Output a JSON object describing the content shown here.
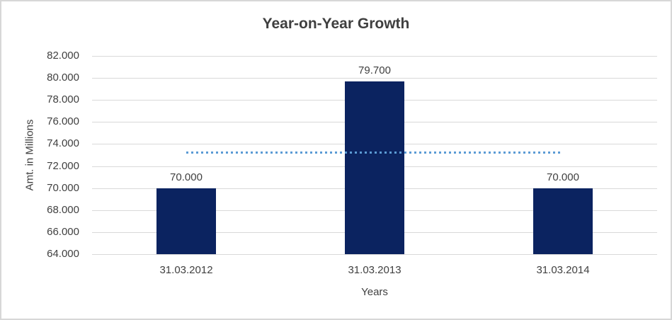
{
  "chart_data": {
    "type": "bar",
    "title": "Year-on-Year Growth",
    "xlabel": "Years",
    "ylabel": "Amt. in Millions",
    "categories": [
      "31.03.2012",
      "31.03.2013",
      "31.03.2014"
    ],
    "values": [
      70.0,
      79.7,
      70.0
    ],
    "data_labels": [
      "70.000",
      "79.700",
      "70.000"
    ],
    "yticks": [
      {
        "value": 64,
        "label": "64.000"
      },
      {
        "value": 66,
        "label": "66.000"
      },
      {
        "value": 68,
        "label": "68.000"
      },
      {
        "value": 70,
        "label": "70.000"
      },
      {
        "value": 72,
        "label": "72.000"
      },
      {
        "value": 74,
        "label": "74.000"
      },
      {
        "value": 76,
        "label": "76.000"
      },
      {
        "value": 78,
        "label": "78.000"
      },
      {
        "value": 80,
        "label": "80.000"
      },
      {
        "value": 82,
        "label": "82.000"
      }
    ],
    "ylim": [
      64,
      82
    ],
    "grid": true,
    "legend": "none",
    "average_line": {
      "value": 73.233,
      "style": "dotted",
      "color": "#5b9bd5",
      "from_category": "31.03.2012",
      "to_category": "31.03.2014"
    },
    "colors": {
      "bar": "#0b2360",
      "gridline": "#d9d9d9",
      "text": "#404040",
      "title": "#3f3f3f",
      "frame_border": "#d7d7d7"
    }
  }
}
